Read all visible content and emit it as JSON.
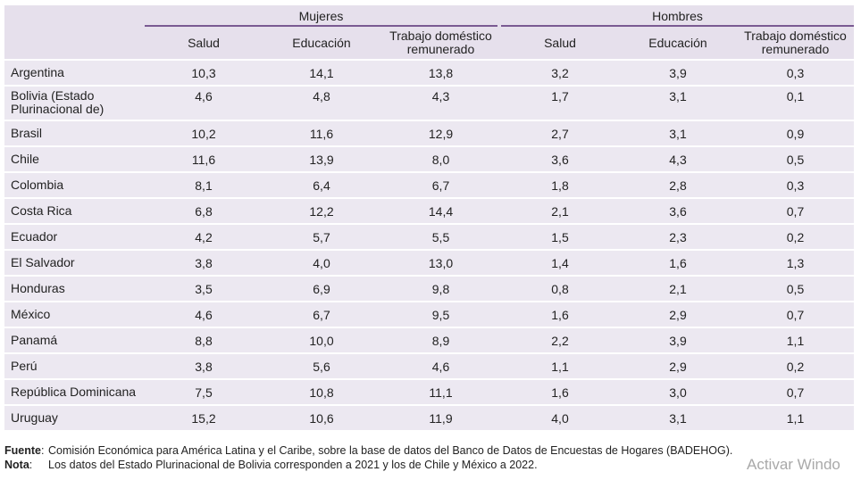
{
  "groups": {
    "mujeres": "Mujeres",
    "hombres": "Hombres"
  },
  "columns": [
    "Salud",
    "Educación",
    "Trabajo doméstico remunerado",
    "Salud",
    "Educación",
    "Trabajo doméstico remunerado"
  ],
  "rows": [
    {
      "country": "Argentina",
      "values": [
        "10,3",
        "14,1",
        "13,8",
        "3,2",
        "3,9",
        "0,3"
      ]
    },
    {
      "country": "Bolivia (Estado Plurinacional de)",
      "values": [
        "4,6",
        "4,8",
        "4,3",
        "1,7",
        "3,1",
        "0,1"
      ]
    },
    {
      "country": "Brasil",
      "values": [
        "10,2",
        "11,6",
        "12,9",
        "2,7",
        "3,1",
        "0,9"
      ]
    },
    {
      "country": "Chile",
      "values": [
        "11,6",
        "13,9",
        "8,0",
        "3,6",
        "4,3",
        "0,5"
      ]
    },
    {
      "country": "Colombia",
      "values": [
        "8,1",
        "6,4",
        "6,7",
        "1,8",
        "2,8",
        "0,3"
      ]
    },
    {
      "country": "Costa Rica",
      "values": [
        "6,8",
        "12,2",
        "14,4",
        "2,1",
        "3,6",
        "0,7"
      ]
    },
    {
      "country": "Ecuador",
      "values": [
        "4,2",
        "5,7",
        "5,5",
        "1,5",
        "2,3",
        "0,2"
      ]
    },
    {
      "country": "El Salvador",
      "values": [
        "3,8",
        "4,0",
        "13,0",
        "1,4",
        "1,6",
        "1,3"
      ]
    },
    {
      "country": "Honduras",
      "values": [
        "3,5",
        "6,9",
        "9,8",
        "0,8",
        "2,1",
        "0,5"
      ]
    },
    {
      "country": "México",
      "values": [
        "4,6",
        "6,7",
        "9,5",
        "1,6",
        "2,9",
        "0,7"
      ]
    },
    {
      "country": "Panamá",
      "values": [
        "8,8",
        "10,0",
        "8,9",
        "2,2",
        "3,9",
        "1,1"
      ]
    },
    {
      "country": "Perú",
      "values": [
        "3,8",
        "5,6",
        "4,6",
        "1,1",
        "2,9",
        "0,2"
      ]
    },
    {
      "country": "República Dominicana",
      "values": [
        "7,5",
        "10,8",
        "11,1",
        "1,6",
        "3,0",
        "0,7"
      ]
    },
    {
      "country": "Uruguay",
      "values": [
        "15,2",
        "10,6",
        "11,9",
        "4,0",
        "3,1",
        "1,1"
      ]
    }
  ],
  "notes": {
    "fuente_label": "Fuente",
    "fuente_text": "Comisión Económica para América Latina y el Caribe, sobre la base de datos del Banco de Datos de Encuestas de Hogares (BADEHOG).",
    "nota_label": "Nota",
    "nota_text": "Los datos del Estado Plurinacional de Bolivia corresponden a 2021 y los de Chile y México a 2022."
  },
  "watermark": "Activar Windo"
}
